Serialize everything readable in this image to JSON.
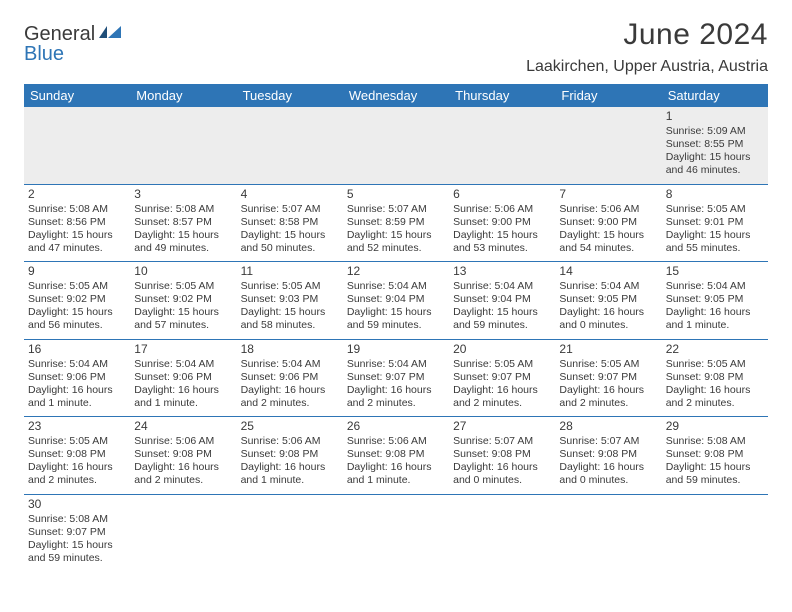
{
  "logo": {
    "text1": "General",
    "text2": "Blue"
  },
  "title": "June 2024",
  "location": "Laakirchen, Upper Austria, Austria",
  "colors": {
    "header_bg": "#2e75b6",
    "header_fg": "#ffffff",
    "rule": "#2e75b6",
    "first_row_bg": "#ededed",
    "text": "#3a3a3a"
  },
  "day_headers": [
    "Sunday",
    "Monday",
    "Tuesday",
    "Wednesday",
    "Thursday",
    "Friday",
    "Saturday"
  ],
  "weeks": [
    [
      null,
      null,
      null,
      null,
      null,
      null,
      {
        "n": "1",
        "r": "5:09 AM",
        "s": "8:55 PM",
        "d": "15 hours and 46 minutes."
      }
    ],
    [
      {
        "n": "2",
        "r": "5:08 AM",
        "s": "8:56 PM",
        "d": "15 hours and 47 minutes."
      },
      {
        "n": "3",
        "r": "5:08 AM",
        "s": "8:57 PM",
        "d": "15 hours and 49 minutes."
      },
      {
        "n": "4",
        "r": "5:07 AM",
        "s": "8:58 PM",
        "d": "15 hours and 50 minutes."
      },
      {
        "n": "5",
        "r": "5:07 AM",
        "s": "8:59 PM",
        "d": "15 hours and 52 minutes."
      },
      {
        "n": "6",
        "r": "5:06 AM",
        "s": "9:00 PM",
        "d": "15 hours and 53 minutes."
      },
      {
        "n": "7",
        "r": "5:06 AM",
        "s": "9:00 PM",
        "d": "15 hours and 54 minutes."
      },
      {
        "n": "8",
        "r": "5:05 AM",
        "s": "9:01 PM",
        "d": "15 hours and 55 minutes."
      }
    ],
    [
      {
        "n": "9",
        "r": "5:05 AM",
        "s": "9:02 PM",
        "d": "15 hours and 56 minutes."
      },
      {
        "n": "10",
        "r": "5:05 AM",
        "s": "9:02 PM",
        "d": "15 hours and 57 minutes."
      },
      {
        "n": "11",
        "r": "5:05 AM",
        "s": "9:03 PM",
        "d": "15 hours and 58 minutes."
      },
      {
        "n": "12",
        "r": "5:04 AM",
        "s": "9:04 PM",
        "d": "15 hours and 59 minutes."
      },
      {
        "n": "13",
        "r": "5:04 AM",
        "s": "9:04 PM",
        "d": "15 hours and 59 minutes."
      },
      {
        "n": "14",
        "r": "5:04 AM",
        "s": "9:05 PM",
        "d": "16 hours and 0 minutes."
      },
      {
        "n": "15",
        "r": "5:04 AM",
        "s": "9:05 PM",
        "d": "16 hours and 1 minute."
      }
    ],
    [
      {
        "n": "16",
        "r": "5:04 AM",
        "s": "9:06 PM",
        "d": "16 hours and 1 minute."
      },
      {
        "n": "17",
        "r": "5:04 AM",
        "s": "9:06 PM",
        "d": "16 hours and 1 minute."
      },
      {
        "n": "18",
        "r": "5:04 AM",
        "s": "9:06 PM",
        "d": "16 hours and 2 minutes."
      },
      {
        "n": "19",
        "r": "5:04 AM",
        "s": "9:07 PM",
        "d": "16 hours and 2 minutes."
      },
      {
        "n": "20",
        "r": "5:05 AM",
        "s": "9:07 PM",
        "d": "16 hours and 2 minutes."
      },
      {
        "n": "21",
        "r": "5:05 AM",
        "s": "9:07 PM",
        "d": "16 hours and 2 minutes."
      },
      {
        "n": "22",
        "r": "5:05 AM",
        "s": "9:08 PM",
        "d": "16 hours and 2 minutes."
      }
    ],
    [
      {
        "n": "23",
        "r": "5:05 AM",
        "s": "9:08 PM",
        "d": "16 hours and 2 minutes."
      },
      {
        "n": "24",
        "r": "5:06 AM",
        "s": "9:08 PM",
        "d": "16 hours and 2 minutes."
      },
      {
        "n": "25",
        "r": "5:06 AM",
        "s": "9:08 PM",
        "d": "16 hours and 1 minute."
      },
      {
        "n": "26",
        "r": "5:06 AM",
        "s": "9:08 PM",
        "d": "16 hours and 1 minute."
      },
      {
        "n": "27",
        "r": "5:07 AM",
        "s": "9:08 PM",
        "d": "16 hours and 0 minutes."
      },
      {
        "n": "28",
        "r": "5:07 AM",
        "s": "9:08 PM",
        "d": "16 hours and 0 minutes."
      },
      {
        "n": "29",
        "r": "5:08 AM",
        "s": "9:08 PM",
        "d": "15 hours and 59 minutes."
      }
    ],
    [
      {
        "n": "30",
        "r": "5:08 AM",
        "s": "9:07 PM",
        "d": "15 hours and 59 minutes."
      },
      null,
      null,
      null,
      null,
      null,
      null
    ]
  ],
  "labels": {
    "sunrise": "Sunrise:",
    "sunset": "Sunset:",
    "daylight": "Daylight:"
  }
}
